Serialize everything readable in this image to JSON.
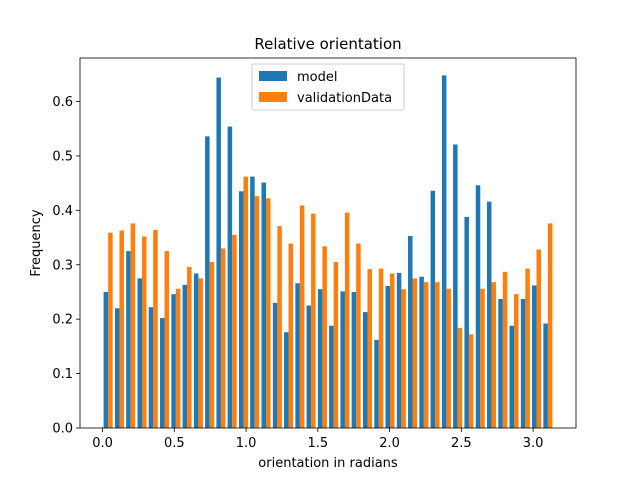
{
  "chart_data": {
    "type": "bar",
    "title": "Relative orientation",
    "xlabel": "orientation in radians",
    "ylabel": "Frequency",
    "xlim": [
      -0.157,
      3.299
    ],
    "ylim": [
      0,
      0.68
    ],
    "x_ticks": [
      0.0,
      0.5,
      1.0,
      1.5,
      2.0,
      2.5,
      3.0
    ],
    "x_tick_labels": [
      "0.0",
      "0.5",
      "1.0",
      "1.5",
      "2.0",
      "2.5",
      "3.0"
    ],
    "y_ticks": [
      0.0,
      0.1,
      0.2,
      0.3,
      0.4,
      0.5,
      0.6
    ],
    "y_tick_labels": [
      "0.0",
      "0.1",
      "0.2",
      "0.3",
      "0.4",
      "0.5",
      "0.6"
    ],
    "legend_position": "top-center",
    "bin_width": 0.0785,
    "x": [
      0.039,
      0.118,
      0.196,
      0.275,
      0.353,
      0.432,
      0.511,
      0.589,
      0.668,
      0.746,
      0.825,
      0.903,
      0.982,
      1.06,
      1.139,
      1.218,
      1.296,
      1.375,
      1.453,
      1.532,
      1.61,
      1.689,
      1.767,
      1.846,
      1.925,
      2.003,
      2.082,
      2.16,
      2.239,
      2.317,
      2.396,
      2.474,
      2.553,
      2.632,
      2.71,
      2.789,
      2.867,
      2.946,
      3.024,
      3.103
    ],
    "series": [
      {
        "name": "model",
        "color": "#1f77b4",
        "values": [
          0.25,
          0.22,
          0.325,
          0.275,
          0.222,
          0.202,
          0.246,
          0.263,
          0.284,
          0.536,
          0.644,
          0.554,
          0.435,
          0.462,
          0.451,
          0.23,
          0.176,
          0.266,
          0.225,
          0.255,
          0.188,
          0.251,
          0.25,
          0.213,
          0.162,
          0.261,
          0.285,
          0.353,
          0.278,
          0.436,
          0.648,
          0.521,
          0.388,
          0.446,
          0.416,
          0.237,
          0.188,
          0.237,
          0.262,
          0.192
        ]
      },
      {
        "name": "validationData",
        "color": "#ff7f0e",
        "values": [
          0.359,
          0.363,
          0.376,
          0.352,
          0.364,
          0.325,
          0.256,
          0.296,
          0.275,
          0.305,
          0.33,
          0.355,
          0.462,
          0.426,
          0.422,
          0.371,
          0.339,
          0.409,
          0.394,
          0.334,
          0.305,
          0.396,
          0.339,
          0.292,
          0.293,
          0.284,
          0.255,
          0.275,
          0.268,
          0.268,
          0.256,
          0.184,
          0.172,
          0.256,
          0.268,
          0.287,
          0.246,
          0.293,
          0.328,
          0.376
        ]
      }
    ]
  }
}
